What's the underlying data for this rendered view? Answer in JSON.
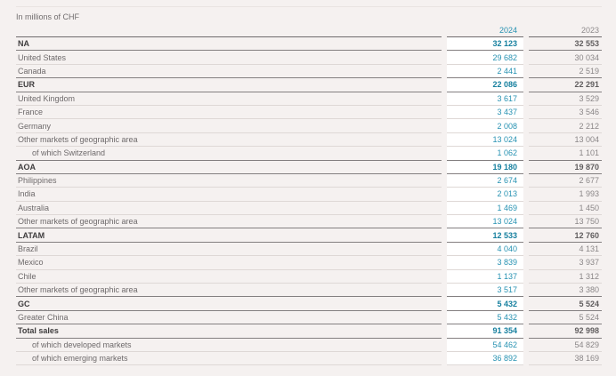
{
  "page": {
    "unit_label": "In millions of CHF",
    "colors": {
      "accent_teal": "#2792b2",
      "accent_teal_bold": "#17809f",
      "background": "#f5f1f0",
      "highlight_column_background": "#ffffff",
      "text_gray": "#6e6a6b",
      "value_gray": "#8a8687"
    }
  },
  "table": {
    "columns": {
      "current": "2024",
      "prior": "2023"
    },
    "rows": [
      {
        "label": "NA",
        "v2024": "32 123",
        "v2023": "32 553",
        "bold": true,
        "indent": false
      },
      {
        "label": "United States",
        "v2024": "29 682",
        "v2023": "30 034",
        "bold": false,
        "indent": false
      },
      {
        "label": "Canada",
        "v2024": "2 441",
        "v2023": "2 519",
        "bold": false,
        "indent": false
      },
      {
        "label": "EUR",
        "v2024": "22 086",
        "v2023": "22 291",
        "bold": true,
        "indent": false
      },
      {
        "label": "United Kingdom",
        "v2024": "3 617",
        "v2023": "3 529",
        "bold": false,
        "indent": false
      },
      {
        "label": "France",
        "v2024": "3 437",
        "v2023": "3 546",
        "bold": false,
        "indent": false
      },
      {
        "label": "Germany",
        "v2024": "2 008",
        "v2023": "2 212",
        "bold": false,
        "indent": false
      },
      {
        "label": "Other markets of geographic area",
        "v2024": "13 024",
        "v2023": "13 004",
        "bold": false,
        "indent": false
      },
      {
        "label": "of which Switzerland",
        "v2024": "1 062",
        "v2023": "1 101",
        "bold": false,
        "indent": true
      },
      {
        "label": "AOA",
        "v2024": "19 180",
        "v2023": "19 870",
        "bold": true,
        "indent": false
      },
      {
        "label": "Philippines",
        "v2024": "2 674",
        "v2023": "2 677",
        "bold": false,
        "indent": false
      },
      {
        "label": "India",
        "v2024": "2 013",
        "v2023": "1 993",
        "bold": false,
        "indent": false
      },
      {
        "label": "Australia",
        "v2024": "1 469",
        "v2023": "1 450",
        "bold": false,
        "indent": false
      },
      {
        "label": "Other markets of geographic area",
        "v2024": "13 024",
        "v2023": "13 750",
        "bold": false,
        "indent": false
      },
      {
        "label": "LATAM",
        "v2024": "12 533",
        "v2023": "12 760",
        "bold": true,
        "indent": false
      },
      {
        "label": "Brazil",
        "v2024": "4 040",
        "v2023": "4 131",
        "bold": false,
        "indent": false
      },
      {
        "label": "Mexico",
        "v2024": "3 839",
        "v2023": "3 937",
        "bold": false,
        "indent": false
      },
      {
        "label": "Chile",
        "v2024": "1 137",
        "v2023": "1 312",
        "bold": false,
        "indent": false
      },
      {
        "label": "Other markets of geographic area",
        "v2024": "3 517",
        "v2023": "3 380",
        "bold": false,
        "indent": false
      },
      {
        "label": "GC",
        "v2024": "5 432",
        "v2023": "5 524",
        "bold": true,
        "indent": false
      },
      {
        "label": "Greater China",
        "v2024": "5 432",
        "v2023": "5 524",
        "bold": false,
        "indent": false
      },
      {
        "label": "Total sales",
        "v2024": "91 354",
        "v2023": "92 998",
        "bold": true,
        "indent": false
      },
      {
        "label": "of which developed markets",
        "v2024": "54 462",
        "v2023": "54 829",
        "bold": false,
        "indent": true
      },
      {
        "label": "of which emerging markets",
        "v2024": "36 892",
        "v2023": "38 169",
        "bold": false,
        "indent": true
      }
    ]
  }
}
